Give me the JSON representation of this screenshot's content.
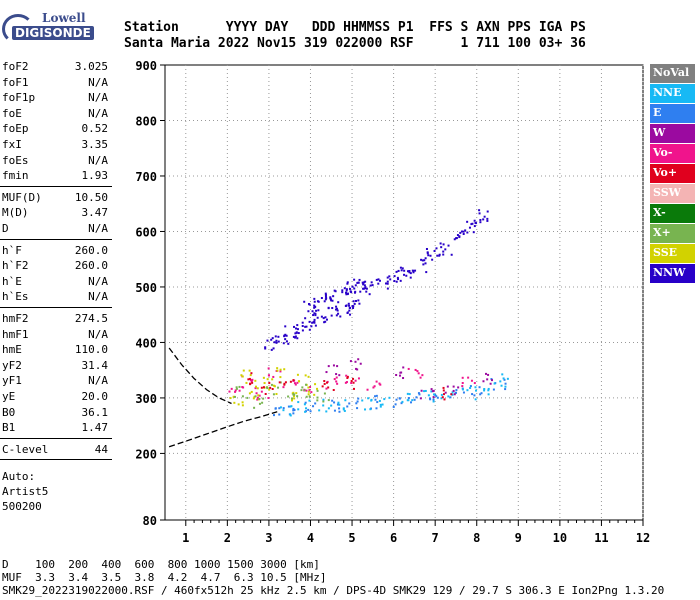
{
  "logo": {
    "line1": "Lowell",
    "line2": "DIGISONDE"
  },
  "header": {
    "row1": "Station      YYYY DAY   DDD HHMMSS P1  FFS S AXN PPS IGA PS",
    "row2": "Santa Maria 2022 Nov15 319 022000 RSF      1 711 100 03+ 36"
  },
  "parameters": [
    {
      "name": "foF2",
      "value": "3.025"
    },
    {
      "name": "foF1",
      "value": "N/A"
    },
    {
      "name": "foF1p",
      "value": "N/A"
    },
    {
      "name": "foE",
      "value": "N/A"
    },
    {
      "name": "foEp",
      "value": "0.52"
    },
    {
      "name": "fxI",
      "value": "3.35"
    },
    {
      "name": "foEs",
      "value": "N/A"
    },
    {
      "name": "fmin",
      "value": "1.93"
    },
    {
      "name": "MUF(D)",
      "value": "10.50"
    },
    {
      "name": "M(D)",
      "value": "3.47"
    },
    {
      "name": "D",
      "value": "N/A"
    },
    {
      "name": "h`F",
      "value": "260.0"
    },
    {
      "name": "h`F2",
      "value": "260.0"
    },
    {
      "name": "h`E",
      "value": "N/A"
    },
    {
      "name": "h`Es",
      "value": "N/A"
    },
    {
      "name": "hmF2",
      "value": "274.5"
    },
    {
      "name": "hmF1",
      "value": "N/A"
    },
    {
      "name": "hmE",
      "value": "110.0"
    },
    {
      "name": "yF2",
      "value": "31.4"
    },
    {
      "name": "yF1",
      "value": "N/A"
    },
    {
      "name": "yE",
      "value": "20.0"
    },
    {
      "name": "B0",
      "value": "36.1"
    },
    {
      "name": "B1",
      "value": "1.47"
    },
    {
      "name": "C-level",
      "value": "44"
    }
  ],
  "autoscaling": {
    "line1": "Auto:",
    "line2": "Artist5",
    "line3": "500200"
  },
  "legend": [
    {
      "label": "NoVal",
      "color": "#808080"
    },
    {
      "label": "NNE",
      "color": "#17b9f5"
    },
    {
      "label": "E",
      "color": "#2f7ff0"
    },
    {
      "label": "W",
      "color": "#9b0aa0"
    },
    {
      "label": "Vo-",
      "color": "#f0148c"
    },
    {
      "label": "Vo+",
      "color": "#e0001e"
    },
    {
      "label": "SSW",
      "color": "#f4b4b4"
    },
    {
      "label": "X-",
      "color": "#0a7a0a"
    },
    {
      "label": "X+",
      "color": "#78b450"
    },
    {
      "label": "SSE",
      "color": "#d2d200"
    },
    {
      "label": "NNW",
      "color": "#2800c8"
    }
  ],
  "footer": {
    "line1": "D    100  200  400  600  800 1000 1500 3000 [km]",
    "line2": "MUF  3.3  3.4  3.5  3.8  4.2  4.7  6.3 10.5 [MHz]",
    "line3": "SMK29_2022319022000.RSF / 460fx512h 25 kHz 2.5 km / DPS-4D SMK29 129 / 29.7 S 306.3 E Ion2Png 1.3.20"
  },
  "chart_data": {
    "type": "scatter",
    "xlim": [
      0.5,
      12
    ],
    "ylim": [
      80,
      900
    ],
    "x_ticks": [
      "1",
      "2",
      "3",
      "4",
      "5",
      "6",
      "7",
      "8",
      "9",
      "10",
      "11",
      "12"
    ],
    "y_ticks": [
      "900",
      "800",
      "700",
      "600",
      "500",
      "400",
      "300",
      "200",
      "80"
    ],
    "traces": [
      {
        "name": "NNW",
        "color": "#2800c8",
        "x": [
          4.0,
          4.2,
          4.5,
          4.8,
          5.0,
          5.2,
          5.4,
          5.7,
          6.0,
          6.3,
          6.6,
          6.9,
          7.2,
          7.5,
          7.8,
          8.1
        ],
        "y": [
          465,
          480,
          485,
          495,
          500,
          505,
          500,
          510,
          520,
          530,
          540,
          560,
          570,
          590,
          610,
          630
        ]
      },
      {
        "name": "NNW",
        "color": "#2800c8",
        "x": [
          3.0,
          3.3,
          3.5,
          3.8,
          4.0,
          4.2,
          4.5,
          4.8,
          5.0
        ],
        "y": [
          400,
          410,
          420,
          430,
          440,
          450,
          455,
          460,
          470
        ]
      },
      {
        "name": "E",
        "color": "#2f7ff0",
        "x": [
          3.2,
          3.6,
          4.0,
          4.5,
          5.0,
          5.5,
          6.0,
          6.5,
          7.0,
          7.5,
          8.0,
          8.5
        ],
        "y": [
          280,
          283,
          285,
          288,
          291,
          294,
          297,
          300,
          304,
          308,
          315,
          328
        ]
      },
      {
        "name": "NNE",
        "color": "#17b9f5",
        "x": [
          3.4,
          3.8,
          4.3,
          4.8,
          5.3,
          5.8,
          6.3,
          6.8,
          7.3,
          7.8,
          8.3,
          8.7
        ],
        "y": [
          282,
          285,
          287,
          290,
          293,
          296,
          300,
          303,
          306,
          311,
          320,
          333
        ]
      },
      {
        "name": "Vo-",
        "color": "#f0148c",
        "x": [
          2.2,
          2.5,
          2.8,
          3.1,
          3.5,
          4.0,
          4.5,
          5.0,
          5.5,
          6.5,
          7.8
        ],
        "y": [
          320,
          330,
          310,
          345,
          325,
          315,
          330,
          340,
          320,
          350,
          330
        ]
      },
      {
        "name": "SSE",
        "color": "#d2d200",
        "x": [
          2.2,
          2.4,
          2.6,
          2.8,
          3.0,
          3.2,
          3.5,
          3.8,
          4.1
        ],
        "y": [
          300,
          340,
          310,
          330,
          320,
          345,
          305,
          335,
          315
        ]
      },
      {
        "name": "X+",
        "color": "#78b450",
        "x": [
          2.3,
          2.7,
          3.1,
          3.5,
          3.9,
          4.3
        ],
        "y": [
          310,
          295,
          320,
          300,
          315,
          305
        ]
      },
      {
        "name": "Vo+",
        "color": "#e0001e",
        "x": [
          2.4,
          2.9,
          3.4,
          4.4,
          5.0,
          7.2
        ],
        "y": [
          335,
          320,
          330,
          325,
          330,
          310
        ]
      },
      {
        "name": "W",
        "color": "#9b0aa0",
        "x": [
          4.5,
          5.1,
          6.1,
          6.8,
          7.4,
          8.2
        ],
        "y": [
          350,
          360,
          345,
          310,
          320,
          335
        ]
      }
    ],
    "profile_fit": {
      "x": [
        0.6,
        1.0,
        1.5,
        2.0,
        2.4,
        2.8,
        3.2
      ],
      "y": [
        212,
        222,
        235,
        248,
        258,
        266,
        275
      ]
    },
    "high_profile": {
      "x": [
        0.6,
        0.9,
        1.2,
        1.5,
        1.8,
        2.1
      ],
      "y": [
        390,
        360,
        335,
        315,
        300,
        290
      ]
    }
  }
}
